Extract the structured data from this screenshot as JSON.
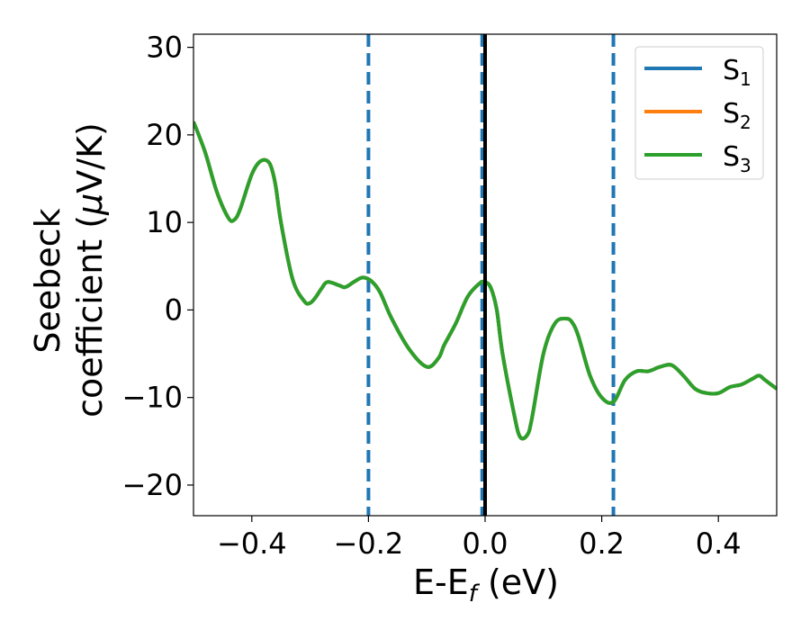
{
  "chart_data": {
    "type": "line",
    "xlabel_main": "E-E",
    "xlabel_sub": "f",
    "xlabel_unit": " (eV)",
    "ylabel_line1": "Seebeck",
    "ylabel_line2": "coefficient  (",
    "ylabel_mu": "μ",
    "ylabel_unit": "V/K)",
    "xlim": [
      -0.5,
      0.5
    ],
    "ylim": [
      -23.5,
      31.5
    ],
    "xticks": [
      -0.4,
      -0.2,
      0.0,
      0.2,
      0.4
    ],
    "xtick_labels": [
      "−0.4",
      "−0.2",
      "0.0",
      "0.2",
      "0.4"
    ],
    "yticks": [
      -20,
      -10,
      0,
      10,
      20,
      30
    ],
    "ytick_labels": [
      "−20",
      "−10",
      "0",
      "10",
      "20",
      "30"
    ],
    "vlines_dashed": [
      -0.2,
      -0.005,
      0.22
    ],
    "vline_solid": 0.0,
    "legend_position": "top-right",
    "grid": false,
    "series": [
      {
        "name": "S",
        "sub": "1",
        "color": "#1f77b4"
      },
      {
        "name": "S",
        "sub": "2",
        "color": "#ff7f0e"
      },
      {
        "name": "S",
        "sub": "3",
        "color": "#2ca02c"
      }
    ],
    "x": [
      -0.5,
      -0.48,
      -0.46,
      -0.44,
      -0.43,
      -0.42,
      -0.4,
      -0.385,
      -0.37,
      -0.36,
      -0.35,
      -0.33,
      -0.31,
      -0.3,
      -0.29,
      -0.28,
      -0.27,
      -0.25,
      -0.24,
      -0.225,
      -0.21,
      -0.195,
      -0.18,
      -0.16,
      -0.13,
      -0.1,
      -0.08,
      -0.07,
      -0.05,
      -0.03,
      -0.01,
      0.0,
      0.01,
      0.02,
      0.03,
      0.05,
      0.06,
      0.072,
      0.08,
      0.1,
      0.12,
      0.14,
      0.15,
      0.16,
      0.18,
      0.2,
      0.22,
      0.24,
      0.26,
      0.28,
      0.3,
      0.32,
      0.34,
      0.36,
      0.38,
      0.4,
      0.42,
      0.44,
      0.46,
      0.47,
      0.48,
      0.5
    ],
    "y": [
      21.5,
      18,
      13.5,
      10.5,
      10.3,
      11.5,
      15.5,
      17,
      16.8,
      14.5,
      10,
      3.5,
      1,
      0.8,
      1.5,
      2.5,
      3.2,
      2.8,
      2.6,
      3.2,
      3.7,
      3.3,
      2,
      -1,
      -4.5,
      -6.5,
      -5.5,
      -4,
      -1.5,
      1.5,
      3,
      3.2,
      2.5,
      0,
      -5,
      -12,
      -14.5,
      -14.3,
      -12.5,
      -5,
      -1.5,
      -1,
      -1.5,
      -3,
      -7.5,
      -10,
      -10.5,
      -8,
      -7,
      -7,
      -6.5,
      -6.3,
      -7.5,
      -9,
      -9.5,
      -9.5,
      -8.8,
      -8.5,
      -7.8,
      -7.5,
      -8,
      -9
    ]
  }
}
